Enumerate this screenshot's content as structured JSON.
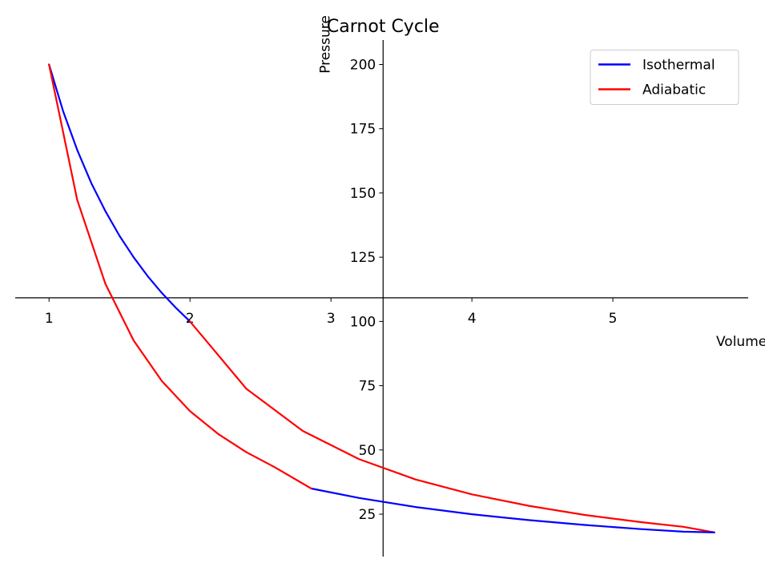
{
  "chart_data": {
    "type": "line",
    "title": "Carnot Cycle",
    "xlabel": "Volume",
    "ylabel": "Pressure",
    "xlim": [
      0.76,
      5.96
    ],
    "ylim": [
      8.5,
      209.5
    ],
    "axes_origin": {
      "x": 3.37,
      "y": 109.2
    },
    "x_ticks": [
      1,
      2,
      3,
      4,
      5
    ],
    "y_ticks": [
      25,
      50,
      75,
      100,
      125,
      150,
      175,
      200
    ],
    "grid": false,
    "legend_position": "top-right",
    "legend": [
      {
        "name": "Isothermal",
        "color": "#0000ff"
      },
      {
        "name": "Adiabatic",
        "color": "#ff0000"
      }
    ],
    "series": [
      {
        "name": "Isothermal",
        "color": "#0000ff",
        "x": [
          1.0,
          1.1,
          1.2,
          1.3,
          1.4,
          1.5,
          1.6,
          1.7,
          1.8,
          1.9,
          2.0
        ],
        "y": [
          200,
          181.8,
          166.7,
          153.8,
          142.9,
          133.3,
          125,
          117.6,
          111.1,
          105.3,
          100
        ]
      },
      {
        "name": "Adiabatic",
        "color": "#ff0000",
        "x": [
          2.0,
          2.4,
          2.8,
          3.2,
          3.6,
          4.0,
          4.4,
          4.8,
          5.2,
          5.5,
          5.72
        ],
        "y": [
          100,
          73.8,
          57.4,
          46.4,
          38.5,
          32.7,
          28.3,
          24.7,
          21.9,
          20.1,
          17.9
        ]
      },
      {
        "name": "",
        "color": "#0000ff",
        "x": [
          2.86,
          3.2,
          3.6,
          4.0,
          4.4,
          4.8,
          5.2,
          5.5,
          5.72
        ],
        "y": [
          35.0,
          31.3,
          27.8,
          25.0,
          22.7,
          20.8,
          19.2,
          18.2,
          17.9
        ]
      },
      {
        "name": "",
        "color": "#ff0000",
        "x": [
          1.0,
          1.2,
          1.4,
          1.6,
          1.8,
          2.0,
          2.2,
          2.4,
          2.6,
          2.86
        ],
        "y": [
          200,
          147.3,
          114.6,
          92.6,
          76.8,
          65.1,
          56.2,
          49.1,
          43.3,
          35.0
        ]
      }
    ]
  }
}
